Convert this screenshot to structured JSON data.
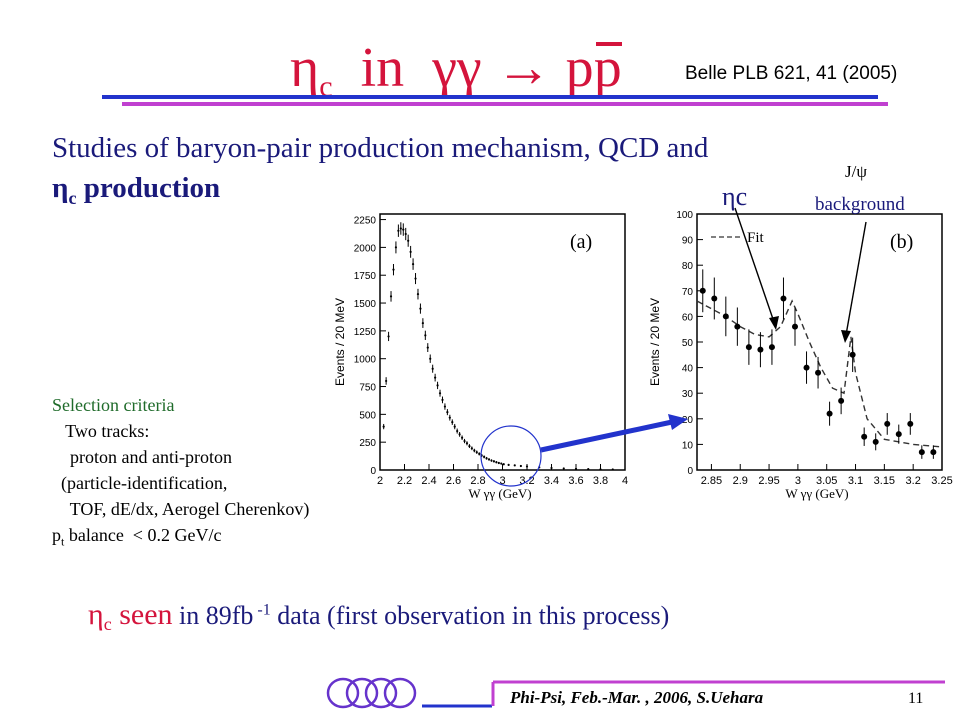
{
  "slide": {
    "title_eta": "η",
    "title_eta_sub": "c",
    "title_in": "in",
    "title_process": "γγ → p",
    "title_pbar": "p",
    "reference": "Belle PLB 621, 41 (2005)",
    "intro_line1": "Studies of baryon-pair production mechanism, QCD and",
    "intro_eta": "η",
    "intro_eta_sub": "c",
    "intro_line2": " production",
    "selection_header": "Selection criteria",
    "selection_lines": [
      "   Two tracks:",
      "    proton and anti-proton",
      "  (particle-identification,",
      "    TOF, dE/dx, Aerogel Cherenkov)"
    ],
    "pt_p": "p",
    "pt_sub": "t",
    "pt_rest": " balance  < 0.2 GeV/c",
    "seen_eta": "η",
    "seen_eta_sub": "c",
    "seen_word": " seen",
    "seen_rest1": "   in  89fb",
    "seen_sup": " -1",
    "seen_rest2": "  data  (first observation in this process)",
    "footer": "Phi-Psi, Feb.-Mar. , 2006, S.Uehara",
    "page_number": "11",
    "annot_etac": "ηc",
    "annot_jpsi": "J/ψ",
    "annot_background": "background"
  },
  "colors": {
    "red": "#d4143c",
    "navy": "#1a1a7a",
    "rule_blue": "#2233cc",
    "rule_purple": "#c040d0",
    "green": "#1f6b2a"
  },
  "chart_data": [
    {
      "type": "scatter",
      "panel_label": "(a)",
      "xlabel": "W γγ  (GeV)",
      "ylabel": "Events / 20 MeV",
      "xlim": [
        2.0,
        4.0
      ],
      "ylim": [
        0,
        2300
      ],
      "xticks": [
        "2",
        "2.2",
        "2.4",
        "2.6",
        "2.8",
        "3",
        "3.2",
        "3.4",
        "3.6",
        "3.8",
        "4"
      ],
      "yticks": [
        "0",
        "250",
        "500",
        "750",
        "1000",
        "1250",
        "1500",
        "1750",
        "2000",
        "2250"
      ],
      "x": [
        2.03,
        2.05,
        2.07,
        2.09,
        2.11,
        2.13,
        2.15,
        2.17,
        2.19,
        2.21,
        2.23,
        2.25,
        2.27,
        2.29,
        2.31,
        2.33,
        2.35,
        2.37,
        2.39,
        2.41,
        2.43,
        2.45,
        2.47,
        2.49,
        2.51,
        2.53,
        2.55,
        2.57,
        2.59,
        2.61,
        2.63,
        2.65,
        2.67,
        2.69,
        2.71,
        2.73,
        2.75,
        2.77,
        2.79,
        2.81,
        2.83,
        2.85,
        2.87,
        2.89,
        2.91,
        2.93,
        2.95,
        2.97,
        2.99,
        3.01,
        3.05,
        3.1,
        3.15,
        3.2,
        3.3,
        3.4,
        3.5,
        3.6,
        3.7,
        3.8,
        3.9
      ],
      "y": [
        390,
        800,
        1200,
        1560,
        1800,
        2000,
        2150,
        2170,
        2160,
        2120,
        2060,
        1960,
        1850,
        1720,
        1580,
        1450,
        1320,
        1210,
        1100,
        1000,
        910,
        830,
        760,
        690,
        630,
        570,
        520,
        470,
        430,
        390,
        350,
        320,
        290,
        260,
        240,
        215,
        195,
        175,
        160,
        145,
        130,
        118,
        105,
        95,
        85,
        78,
        70,
        63,
        58,
        52,
        46,
        42,
        36,
        32,
        24,
        18,
        14,
        10,
        8,
        6,
        5
      ]
    },
    {
      "type": "scatter",
      "panel_label": "(b)",
      "xlabel": "W γγ  (GeV)",
      "ylabel": "Events / 20 MeV",
      "legend": "Fit",
      "xlim": [
        2.825,
        3.25
      ],
      "ylim": [
        0,
        100
      ],
      "xticks": [
        "2.85",
        "2.9",
        "2.95",
        "3",
        "3.05",
        "3.1",
        "3.15",
        "3.2",
        "3.25"
      ],
      "yticks": [
        "0",
        "10",
        "20",
        "30",
        "40",
        "50",
        "60",
        "70",
        "80",
        "90",
        "100"
      ],
      "x": [
        2.835,
        2.855,
        2.875,
        2.895,
        2.915,
        2.935,
        2.955,
        2.975,
        2.995,
        3.015,
        3.035,
        3.055,
        3.075,
        3.095,
        3.115,
        3.135,
        3.155,
        3.175,
        3.195,
        3.215,
        3.235
      ],
      "y": [
        70,
        67,
        60,
        56,
        48,
        47,
        48,
        67,
        56,
        40,
        38,
        22,
        27,
        45,
        13,
        11,
        18,
        14,
        18,
        7,
        7
      ],
      "fit_x": [
        2.825,
        2.85,
        2.875,
        2.9,
        2.925,
        2.95,
        2.97,
        2.99,
        3.0,
        3.02,
        3.04,
        3.06,
        3.08,
        3.092,
        3.1,
        3.12,
        3.15,
        3.2,
        3.25
      ],
      "fit_y": [
        66,
        63,
        60,
        56,
        53,
        52,
        56,
        66,
        61,
        50,
        40,
        32,
        30,
        52,
        38,
        20,
        12,
        10,
        9
      ]
    }
  ]
}
